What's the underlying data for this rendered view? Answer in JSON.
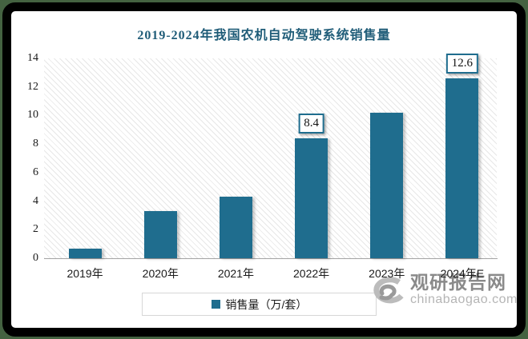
{
  "window": {
    "outer_background": "#446241",
    "frame_color": "#000000",
    "panel_color": "#ffffff"
  },
  "chart_data": {
    "type": "bar",
    "title": "2019-2024年我国农机自动驾驶系统销售量",
    "categories": [
      "2019年",
      "2020年",
      "2021年",
      "2022年",
      "2023年",
      "2024年E"
    ],
    "series": [
      {
        "name": "销售量（万/套）",
        "values": [
          0.65,
          3.3,
          4.3,
          8.4,
          10.2,
          12.6
        ]
      }
    ],
    "data_labels": [
      "",
      "",
      "",
      "8.4",
      "",
      "12.6"
    ],
    "ylim": [
      0,
      14
    ],
    "yticks": [
      0,
      2,
      4,
      6,
      8,
      10,
      12,
      14
    ],
    "grid": false,
    "legend_position": "bottom",
    "bar_color": "#1F6D8E",
    "title_color": "#1F5C78",
    "axis_line_color": "#A3A3A3"
  },
  "legend": {
    "label": "销售量（万/套）"
  },
  "watermark": {
    "logo": "swirl-logo",
    "brand": "观研报告网",
    "site": "chinabaogao.com"
  }
}
